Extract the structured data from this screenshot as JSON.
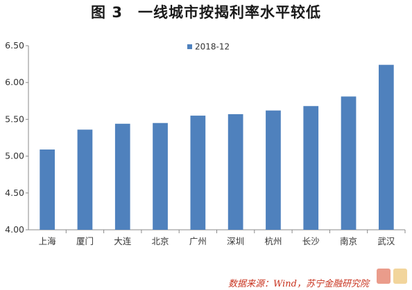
{
  "figure": {
    "number": "图 3",
    "title": "一线城市按揭利率水平较低"
  },
  "chart_data": {
    "type": "bar",
    "categories": [
      "上海",
      "厦门",
      "大连",
      "北京",
      "广州",
      "深圳",
      "杭州",
      "长沙",
      "南京",
      "武汉"
    ],
    "series": [
      {
        "name": "2018-12",
        "values": [
          5.09,
          5.36,
          5.44,
          5.45,
          5.55,
          5.57,
          5.62,
          5.68,
          5.81,
          6.24
        ],
        "color": "#4f81bd"
      }
    ],
    "ylim": [
      4.0,
      6.5
    ],
    "yticks": [
      "4.00",
      "4.50",
      "5.00",
      "5.50",
      "6.00",
      "6.50"
    ],
    "grid": false,
    "legend_position": "top-center"
  },
  "source": "数据来源：Wind，苏宁金融研究院",
  "watermark_colors": [
    "#d94a2b",
    "#e8b24a"
  ]
}
